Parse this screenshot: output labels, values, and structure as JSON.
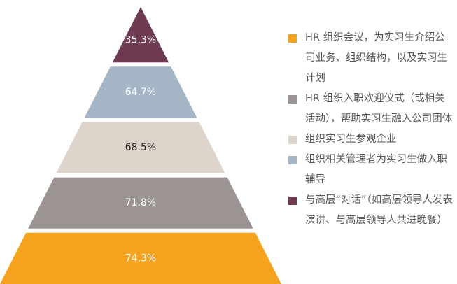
{
  "chart_data": {
    "type": "pyramid",
    "categories": [
      "HR 组织会议，为实习生介绍公司业务、组织结构，以及实习生计划",
      "HR 组织入职欢迎仪式（或相关活动），帮助实习生融入公司团体",
      "组织实习生参观企业",
      "组织相关管理者为实习生做入职辅导",
      "与高层“对话”（如高层领导人发表演讲、与高层领导人共进晚餐）"
    ],
    "values": [
      74.3,
      71.8,
      68.5,
      64.7,
      35.3
    ],
    "value_labels": [
      "74.3%",
      "71.8%",
      "68.5%",
      "64.7%",
      "35.3%"
    ],
    "colors": [
      "#f5a31f",
      "#9b9492",
      "#ddd4cb",
      "#a4b5c5",
      "#6e3b52"
    ],
    "legend": "right"
  }
}
